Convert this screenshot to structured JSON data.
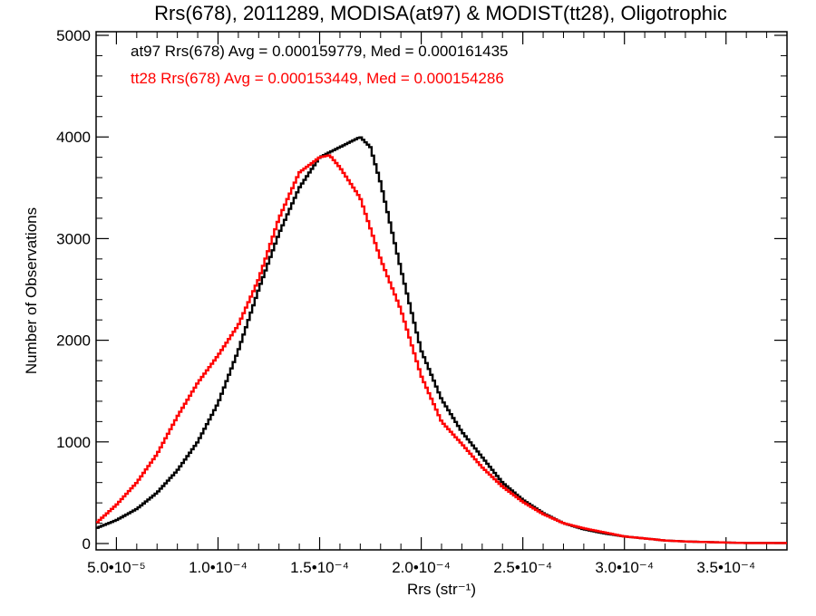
{
  "chart_data": {
    "type": "line",
    "title": "Rrs(678), 2011289, MODISA(at97) & MODIST(tt28), Oligotrophic",
    "xlabel": "Rrs (str⁻¹)",
    "ylabel": "Number of Observations",
    "xlim": [
      4e-05,
      0.00038
    ],
    "ylim": [
      0,
      5000
    ],
    "xticks": [
      {
        "value": 5e-05,
        "label": "5.0•10⁻⁵"
      },
      {
        "value": 0.0001,
        "label": "1.0•10⁻⁴"
      },
      {
        "value": 0.00015,
        "label": "1.5•10⁻⁴"
      },
      {
        "value": 0.0002,
        "label": "2.0•10⁻⁴"
      },
      {
        "value": 0.00025,
        "label": "2.5•10⁻⁴"
      },
      {
        "value": 0.0003,
        "label": "3.0•10⁻⁴"
      },
      {
        "value": 0.00035,
        "label": "3.5•10⁻⁴"
      }
    ],
    "yticks": [
      {
        "value": 0,
        "label": "0"
      },
      {
        "value": 1000,
        "label": "1000"
      },
      {
        "value": 2000,
        "label": "2000"
      },
      {
        "value": 3000,
        "label": "3000"
      },
      {
        "value": 4000,
        "label": "4000"
      },
      {
        "value": 5000,
        "label": "5000"
      }
    ],
    "annotations": [
      {
        "text": "at97 Rrs(678) Avg = 0.000159779, Med = 0.000161435",
        "color": "#000000"
      },
      {
        "text": "tt28 Rrs(678) Avg = 0.000153449, Med = 0.000154286",
        "color": "#ff0000"
      }
    ],
    "series": [
      {
        "color": "#000000",
        "x": [
          4e-05,
          5e-05,
          6e-05,
          7e-05,
          8e-05,
          9e-05,
          0.0001,
          0.00011,
          0.00012,
          0.00013,
          0.00014,
          0.00015,
          0.00016,
          0.00017,
          0.000175,
          0.00018,
          0.00019,
          0.0002,
          0.00021,
          0.00022,
          0.00023,
          0.00024,
          0.00025,
          0.00026,
          0.00027,
          0.00028,
          0.00029,
          0.0003,
          0.00031,
          0.00032,
          0.00033,
          0.00034,
          0.00035,
          0.00036,
          0.00037,
          0.00038
        ],
        "y": [
          150,
          230,
          340,
          500,
          720,
          1000,
          1380,
          1900,
          2500,
          3050,
          3500,
          3800,
          3900,
          4000,
          3900,
          3550,
          2700,
          1900,
          1420,
          1100,
          850,
          600,
          430,
          300,
          200,
          140,
          100,
          70,
          50,
          30,
          20,
          15,
          10,
          5,
          5,
          5
        ]
      },
      {
        "color": "#ff0000",
        "x": [
          4e-05,
          5e-05,
          6e-05,
          7e-05,
          8e-05,
          9e-05,
          0.0001,
          0.00011,
          0.00012,
          0.00013,
          0.00014,
          0.00015,
          0.000155,
          0.00016,
          0.00017,
          0.00018,
          0.00019,
          0.0002,
          0.00021,
          0.00022,
          0.00023,
          0.00024,
          0.00025,
          0.00026,
          0.00027,
          0.00028,
          0.00029,
          0.0003,
          0.00031,
          0.00032,
          0.00033,
          0.00034,
          0.00035,
          0.00036,
          0.00037,
          0.00038
        ],
        "y": [
          200,
          380,
          600,
          880,
          1250,
          1580,
          1850,
          2150,
          2600,
          3200,
          3650,
          3800,
          3820,
          3700,
          3400,
          2800,
          2300,
          1650,
          1200,
          980,
          750,
          560,
          410,
          290,
          200,
          150,
          110,
          70,
          50,
          30,
          20,
          15,
          10,
          5,
          5,
          5
        ]
      }
    ]
  }
}
